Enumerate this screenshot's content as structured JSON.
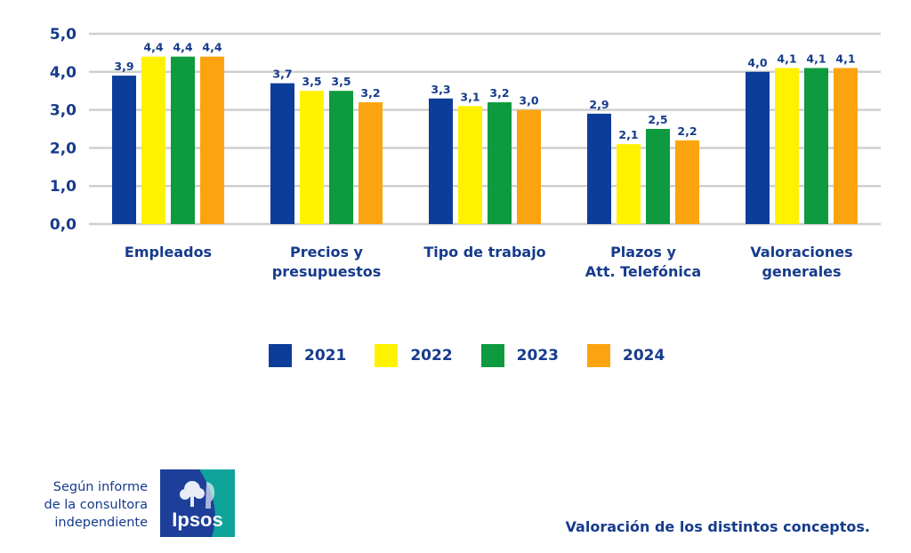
{
  "chart_data": {
    "type": "bar",
    "categories": [
      [
        "Empleados"
      ],
      [
        "Precios y",
        "presupuestos"
      ],
      [
        "Tipo de trabajo"
      ],
      [
        "Plazos y",
        "Att. Telefónica"
      ],
      [
        "Valoraciones",
        "generales"
      ]
    ],
    "series": [
      {
        "name": "2021",
        "color": "#0d3d9a",
        "values": [
          3.9,
          3.7,
          3.3,
          2.9,
          4.0
        ],
        "labels": [
          "3,9",
          "3,7",
          "3,3",
          "2,9",
          "4,0"
        ]
      },
      {
        "name": "2022",
        "color": "#fff200",
        "values": [
          4.4,
          3.5,
          3.1,
          2.1,
          4.1
        ],
        "labels": [
          "4,4",
          "3,5",
          "3,1",
          "2,1",
          "4,1"
        ]
      },
      {
        "name": "2023",
        "color": "#0e9a3e",
        "values": [
          4.4,
          3.5,
          3.2,
          2.5,
          4.1
        ],
        "labels": [
          "4,4",
          "3,5",
          "3,2",
          "2,5",
          "4,1"
        ]
      },
      {
        "name": "2024",
        "color": "#fca40f",
        "values": [
          4.4,
          3.2,
          3.0,
          2.2,
          4.1
        ],
        "labels": [
          "4,4",
          "3,2",
          "3,0",
          "2,2",
          "4,1"
        ]
      }
    ],
    "ylim": [
      0,
      5
    ],
    "yticks": [
      0,
      1,
      2,
      3,
      4,
      5
    ],
    "ytick_labels": [
      "0,0",
      "1,0",
      "2,0",
      "3,0",
      "4,0",
      "5,0"
    ],
    "grid": true,
    "legend_position": "bottom"
  },
  "footer": {
    "source_lines": [
      "Según informe",
      "de la consultora",
      "independiente"
    ],
    "logo_text": "Ipsos",
    "caption": "Valoración de los distintos conceptos."
  },
  "colors": {
    "text": "#163b8c",
    "grid": "#cfcfcf",
    "logo_blue": "#1d3f9a",
    "logo_teal": "#10a39a"
  }
}
